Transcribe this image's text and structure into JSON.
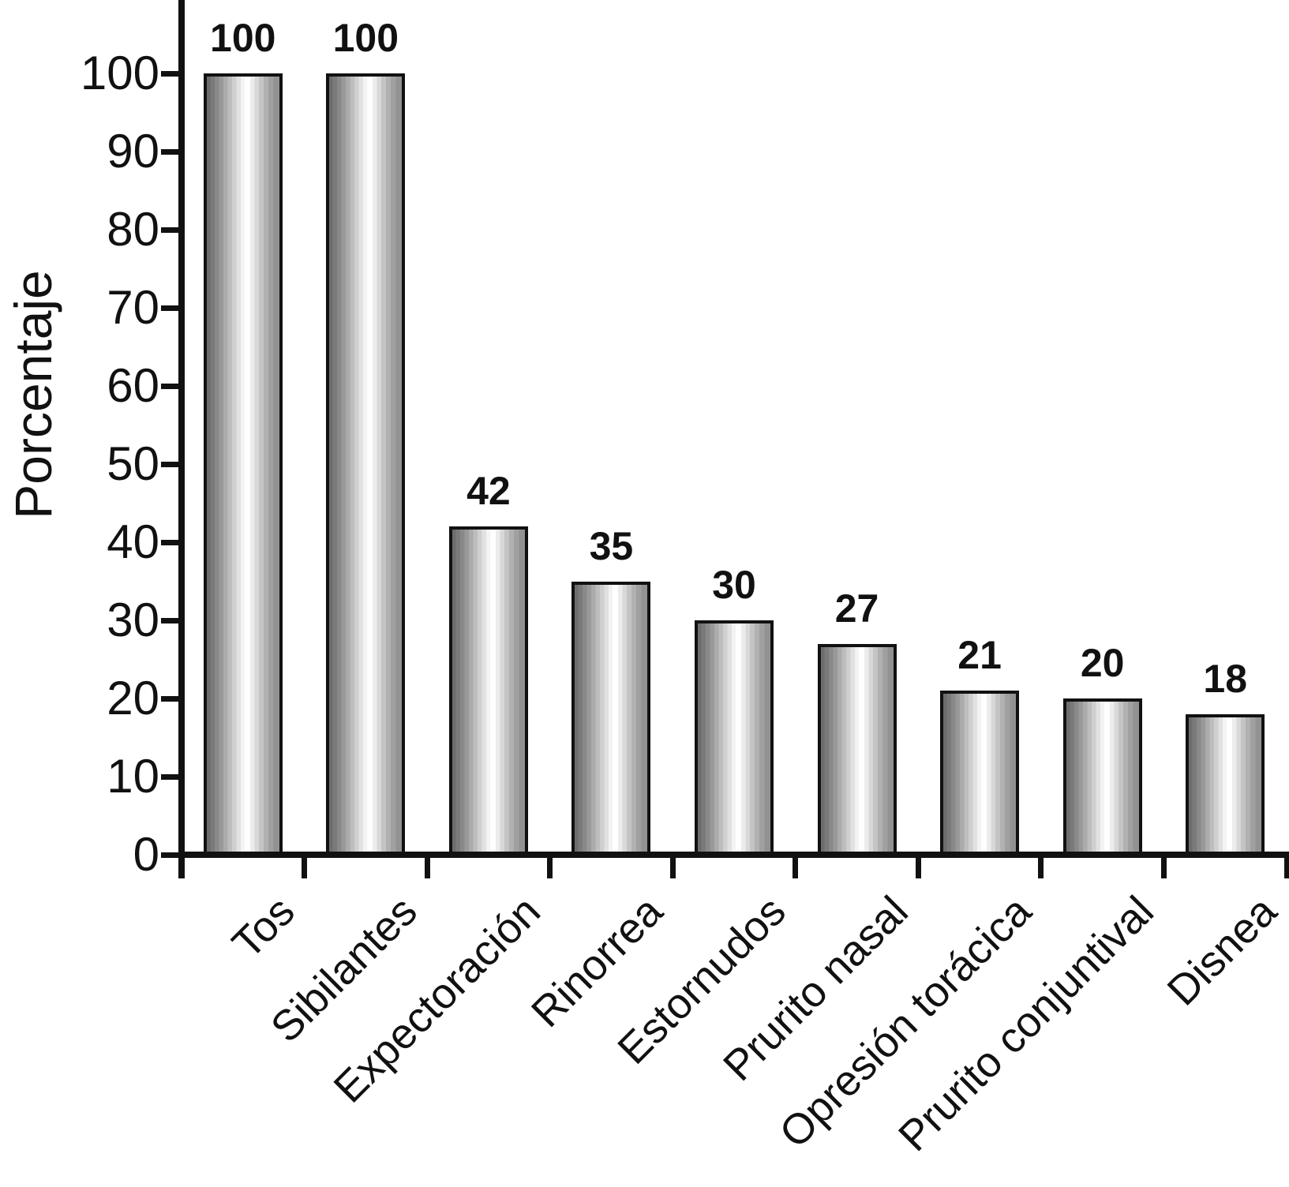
{
  "chart_data": {
    "type": "bar",
    "title": "",
    "xlabel": "",
    "ylabel": "Porcentaje",
    "categories": [
      "Tos",
      "Sibilantes",
      "Expectoración",
      "Rinorrea",
      "Estornudos",
      "Prurito nasal",
      "Opresión torácica",
      "Prurito conjuntival",
      "Disnea"
    ],
    "values": [
      100,
      100,
      42,
      35,
      30,
      27,
      21,
      20,
      18
    ],
    "bar_value_labels": [
      "100",
      "100",
      "42",
      "35",
      "30",
      "27",
      "21",
      "20",
      "18"
    ],
    "ylim": [
      0,
      100
    ],
    "yticks": [
      0,
      10,
      20,
      30,
      40,
      50,
      60,
      70,
      80,
      90,
      100
    ],
    "grid": false,
    "legend_position": "none",
    "x_tick_style": "category-boundaries",
    "category_label_rotation_deg": 45
  },
  "colors": {
    "axis": "#111111",
    "text": "#111111",
    "bar_border": "#111111",
    "bar_shade_dark": "#6d6d6d",
    "bar_shade_light": "#fefefe",
    "background": "#ffffff"
  }
}
